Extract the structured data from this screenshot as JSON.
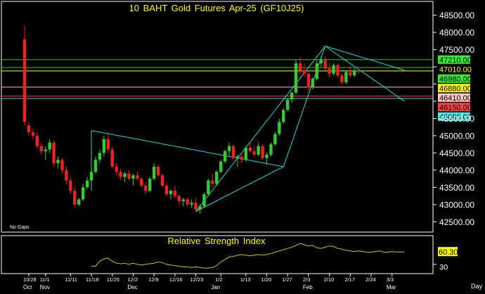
{
  "chart_data": {
    "type": "candlestick",
    "title": "10 BAHT Gold Futures Apr-25 (GF10J25)",
    "note": "No Gaps",
    "period_label": "Day",
    "y_axis": {
      "range": [
        42200,
        48900
      ],
      "ticks": [
        42500,
        43000,
        43500,
        44000,
        44500,
        45000,
        45500,
        46000,
        46500,
        47000,
        47500,
        48000,
        48500
      ],
      "tick_labels": [
        "42500.00",
        "43000.00",
        "43500.00",
        "44000.00",
        "44500.00",
        "45000.00",
        "45500.00",
        "46000.00",
        "46500.00",
        "47000.00",
        "47500.00",
        "48000.00",
        "48500.00"
      ]
    },
    "x_axis": {
      "date_ticks": [
        {
          "label": "10/28",
          "index": 1
        },
        {
          "label": "11/1",
          "index": 5
        },
        {
          "label": "11/11",
          "index": 11
        },
        {
          "label": "11/18",
          "index": 16
        },
        {
          "label": "11/25",
          "index": 21
        },
        {
          "label": "12/2",
          "index": 26
        },
        {
          "label": "12/9",
          "index": 31
        },
        {
          "label": "12/16",
          "index": 36
        },
        {
          "label": "12/23",
          "index": 41
        },
        {
          "label": "1/2",
          "index": 47
        },
        {
          "label": "1/13",
          "index": 53
        },
        {
          "label": "1/20",
          "index": 58
        },
        {
          "label": "1/27",
          "index": 63
        },
        {
          "label": "2/3",
          "index": 68
        },
        {
          "label": "2/10",
          "index": 73
        },
        {
          "label": "2/17",
          "index": 78
        },
        {
          "label": "2/24",
          "index": 83
        },
        {
          "label": "3/3",
          "index": 88
        }
      ],
      "month_labels": [
        {
          "label": "Oct",
          "index": 1
        },
        {
          "label": "Nov",
          "index": 5
        },
        {
          "label": "Dec",
          "index": 26
        },
        {
          "label": "Jan",
          "index": 46
        },
        {
          "label": "Feb",
          "index": 68
        },
        {
          "label": "Mar",
          "index": 88
        }
      ]
    },
    "ohlc": [
      [
        47800,
        48200,
        45300,
        45400
      ],
      [
        45300,
        45400,
        45000,
        45100
      ],
      [
        45100,
        45200,
        44900,
        45000
      ],
      [
        45000,
        45100,
        44600,
        44700
      ],
      [
        44700,
        44800,
        44450,
        44550
      ],
      [
        44550,
        44700,
        44300,
        44600
      ],
      [
        44600,
        44900,
        44500,
        44800
      ],
      [
        44800,
        44850,
        44100,
        44200
      ],
      [
        44200,
        44400,
        44050,
        44300
      ],
      [
        44300,
        44350,
        43900,
        44000
      ],
      [
        44000,
        44100,
        43600,
        43700
      ],
      [
        43700,
        43800,
        43300,
        43400
      ],
      [
        43400,
        43500,
        42950,
        43000
      ],
      [
        43000,
        43200,
        42950,
        43150
      ],
      [
        43150,
        43600,
        43100,
        43500
      ],
      [
        43500,
        43800,
        43450,
        43700
      ],
      [
        43700,
        44000,
        43650,
        43950
      ],
      [
        43950,
        44400,
        43900,
        44300
      ],
      [
        44300,
        44600,
        44200,
        44500
      ],
      [
        44500,
        45000,
        44400,
        44900
      ],
      [
        44900,
        45100,
        44500,
        44600
      ],
      [
        44600,
        44700,
        44050,
        44100
      ],
      [
        44100,
        44200,
        43850,
        43950
      ],
      [
        43950,
        44050,
        43700,
        43800
      ],
      [
        43800,
        43950,
        43650,
        43900
      ],
      [
        43900,
        44000,
        43700,
        43750
      ],
      [
        43750,
        43900,
        43550,
        43850
      ],
      [
        43850,
        43950,
        43700,
        43750
      ],
      [
        43750,
        43800,
        43500,
        43550
      ],
      [
        43550,
        43650,
        43300,
        43400
      ],
      [
        43400,
        43800,
        43350,
        43750
      ],
      [
        43750,
        44200,
        43700,
        44100
      ],
      [
        44100,
        44150,
        43800,
        43850
      ],
      [
        43850,
        43900,
        43500,
        43550
      ],
      [
        43550,
        43600,
        43250,
        43300
      ],
      [
        43300,
        43450,
        43150,
        43400
      ],
      [
        43400,
        43550,
        43200,
        43250
      ],
      [
        43250,
        43300,
        43000,
        43100
      ],
      [
        43100,
        43200,
        42950,
        43150
      ],
      [
        43150,
        43200,
        42950,
        43000
      ],
      [
        43000,
        43150,
        42900,
        43050
      ],
      [
        43050,
        43200,
        42800,
        42850
      ],
      [
        42850,
        43000,
        42750,
        42950
      ],
      [
        42950,
        43350,
        42900,
        43300
      ],
      [
        43300,
        43750,
        43250,
        43700
      ],
      [
        43700,
        43900,
        43500,
        43600
      ],
      [
        43600,
        44000,
        43550,
        43950
      ],
      [
        43950,
        44300,
        43900,
        44250
      ],
      [
        44250,
        44600,
        44200,
        44550
      ],
      [
        44550,
        44800,
        44400,
        44700
      ],
      [
        44700,
        44750,
        44300,
        44350
      ],
      [
        44350,
        44450,
        44100,
        44400
      ],
      [
        44400,
        44500,
        44200,
        44300
      ],
      [
        44300,
        44700,
        44250,
        44650
      ],
      [
        44650,
        44800,
        44500,
        44550
      ],
      [
        44550,
        44700,
        44400,
        44450
      ],
      [
        44450,
        44800,
        44400,
        44700
      ],
      [
        44700,
        44750,
        44300,
        44350
      ],
      [
        44350,
        44500,
        44150,
        44450
      ],
      [
        44450,
        44800,
        44400,
        44750
      ],
      [
        44750,
        45100,
        44700,
        45050
      ],
      [
        45050,
        45500,
        45000,
        45400
      ],
      [
        45400,
        45800,
        45350,
        45750
      ],
      [
        45750,
        46100,
        45700,
        46050
      ],
      [
        46050,
        46300,
        45950,
        46250
      ],
      [
        46250,
        47200,
        46200,
        47100
      ],
      [
        47100,
        47300,
        46800,
        46900
      ],
      [
        46900,
        47100,
        46700,
        46800
      ],
      [
        46800,
        46850,
        46300,
        46400
      ],
      [
        46400,
        46700,
        46350,
        46650
      ],
      [
        46650,
        47200,
        46600,
        47100
      ],
      [
        47100,
        47300,
        47000,
        47200
      ],
      [
        47200,
        47300,
        46900,
        46950
      ],
      [
        46950,
        47100,
        46700,
        46800
      ],
      [
        46800,
        47100,
        46750,
        47050
      ],
      [
        47050,
        47100,
        46700,
        46750
      ],
      [
        46750,
        46800,
        46500,
        46550
      ],
      [
        46550,
        46900,
        46500,
        46850
      ],
      [
        46850,
        47000,
        46700,
        46750
      ],
      [
        46750,
        46950,
        46700,
        46900
      ],
      [
        46900,
        46950,
        46800,
        46880
      ]
    ],
    "horizontal_levels": [
      {
        "value": 47210,
        "label": "47210.00",
        "color": "#22cc22",
        "label_bg": "#33ee33",
        "label_color": "#000000"
      },
      {
        "value": 47010,
        "label": "47010.00",
        "color": "#000000",
        "label_bg": "#000000",
        "label_color": "#ffff00"
      },
      {
        "value": 46980,
        "label": "46980.00",
        "color": "#22cc22",
        "label_bg": "#33ee33",
        "label_color": "#000000"
      },
      {
        "value": 46880,
        "label": "46880.00",
        "color": "#ffff00",
        "label_bg": "#ffff00",
        "label_color": "#000000"
      },
      {
        "value": 46410,
        "label": "46410.00",
        "color": "#ffbbbb",
        "label_bg": "#ffc8c8",
        "label_color": "#000000"
      },
      {
        "value": 46150,
        "label": "46150.00",
        "color": "#ff3333",
        "label_bg": "#ff4444",
        "label_color": "#000000"
      },
      {
        "value": 46080,
        "label": "46080.00",
        "color": "#33dddd",
        "label_bg": "#44eeee",
        "label_color": "#000000"
      }
    ],
    "trendlines": [
      {
        "from": [
          16,
          45150
        ],
        "to": [
          62,
          44100
        ]
      },
      {
        "from": [
          16,
          45150
        ],
        "to": [
          16,
          43400
        ]
      },
      {
        "from": [
          41,
          42800
        ],
        "to": [
          72,
          47600
        ]
      },
      {
        "from": [
          41,
          42800
        ],
        "to": [
          62,
          44100
        ]
      },
      {
        "from": [
          62,
          44100
        ],
        "to": [
          72,
          47600
        ]
      },
      {
        "from": [
          72,
          47600
        ],
        "to": [
          91,
          46000
        ]
      },
      {
        "from": [
          72,
          47600
        ],
        "to": [
          91,
          46900
        ]
      }
    ],
    "rsi": {
      "title": "Relative Strength Index",
      "last_value_label": "60.30",
      "start_index": 16,
      "values": [
        37,
        37,
        45,
        49,
        50,
        45,
        42,
        41,
        42,
        40,
        42,
        40,
        39,
        40,
        41,
        42,
        44,
        43,
        40,
        39,
        38,
        37,
        36,
        36,
        35,
        36,
        35,
        34,
        34,
        35,
        38,
        44,
        48,
        52,
        53,
        55,
        56,
        55,
        54,
        55,
        56,
        55,
        56,
        58,
        60,
        62,
        64,
        66,
        68,
        71,
        74,
        72,
        70,
        71,
        67,
        66,
        68,
        70,
        69,
        66,
        65,
        63,
        62,
        61,
        62,
        61,
        60,
        60,
        61,
        62,
        60,
        60,
        61,
        60.3,
        60.3,
        60.3
      ]
    },
    "colors": {
      "up": "#33cc33",
      "down": "#ee2222",
      "axis": "#ffffff",
      "rsi_line": "#d4c200",
      "trendline": "#22d8d8",
      "title": "#ffff00"
    }
  }
}
